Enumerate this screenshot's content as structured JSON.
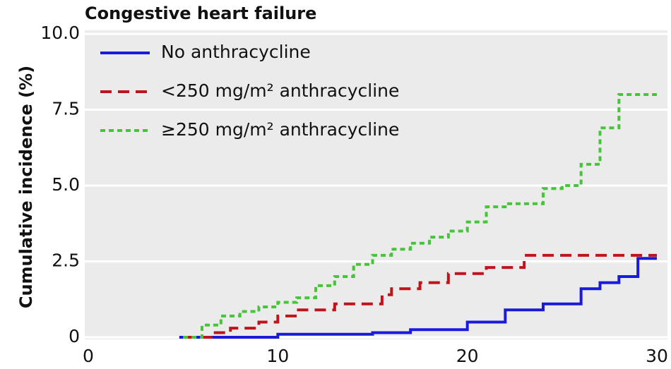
{
  "chart_data": {
    "type": "line",
    "step": true,
    "title": "Congestive heart failure",
    "ylabel": "Cumulative incidence (%)",
    "xlim": [
      0,
      30
    ],
    "xticks": [
      0,
      10,
      20,
      30
    ],
    "ylim": [
      0,
      10
    ],
    "yticks": [
      0,
      2.5,
      {
        "value": 5,
        "label": "5.0"
      },
      7.5,
      {
        "value": 10,
        "label": "10.0"
      }
    ],
    "grid": true,
    "legend": "upper left",
    "series": [
      {
        "name": "No anthracycline",
        "color": "#1a1adb",
        "dash": "solid",
        "x": [
          4.8,
          10,
          15,
          17,
          20,
          22,
          24,
          26,
          27,
          28,
          29,
          30
        ],
        "values": [
          0,
          0.1,
          0.15,
          0.25,
          0.5,
          0.9,
          1.1,
          1.6,
          1.8,
          2.0,
          2.6,
          2.6
        ]
      },
      {
        "name": "<250 mg/m² anthracycline",
        "color": "#c0141c",
        "dash": "long",
        "x": [
          5,
          6.5,
          7.5,
          9,
          10,
          11,
          13,
          15.5,
          16,
          17.5,
          19,
          21,
          23,
          30
        ],
        "values": [
          0,
          0.15,
          0.3,
          0.5,
          0.7,
          0.9,
          1.1,
          1.4,
          1.6,
          1.8,
          2.1,
          2.3,
          2.7,
          2.7
        ]
      },
      {
        "name": "≥250 mg/m² anthracycline",
        "color": "#46c43a",
        "dash": "short",
        "x": [
          5,
          6,
          7,
          8,
          9,
          10,
          11,
          12,
          13,
          14,
          15,
          16,
          17,
          18,
          19,
          20,
          21,
          22,
          23,
          24,
          25,
          26,
          27,
          28,
          30
        ],
        "values": [
          0,
          0.4,
          0.7,
          0.85,
          1.0,
          1.15,
          1.3,
          1.7,
          2.0,
          2.4,
          2.7,
          2.9,
          3.1,
          3.3,
          3.5,
          3.8,
          4.3,
          4.4,
          4.4,
          4.9,
          5.0,
          5.7,
          6.9,
          8.0,
          8.0
        ]
      }
    ]
  }
}
